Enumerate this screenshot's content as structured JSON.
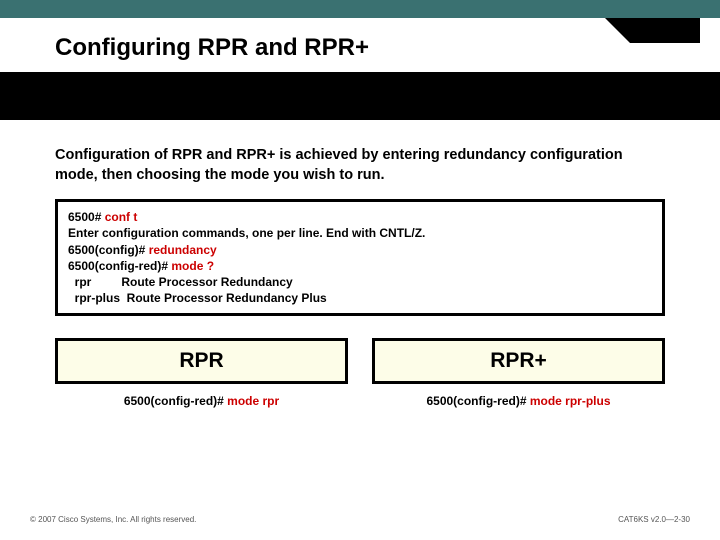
{
  "title": "Configuring RPR and RPR+",
  "intro": "Configuration of RPR and RPR+ is achieved by entering redundancy configuration mode, then choosing the mode you wish to run.",
  "terminal": {
    "l1a": "6500# ",
    "l1b": "conf t",
    "l2": "Enter configuration commands, one per line. End with CNTL/Z.",
    "l3a": "6500(config)# ",
    "l3b": "redundancy",
    "l4a": "6500(config-red)# ",
    "l4b": "mode ?",
    "l5": "  rpr         Route Processor Redundancy",
    "l6": "  rpr-plus  Route Processor Redundancy Plus"
  },
  "columns": {
    "left": {
      "header": "RPR",
      "cmd_prefix": "6500(config-red)# ",
      "cmd_red": "mode rpr"
    },
    "right": {
      "header": "RPR+",
      "cmd_prefix": "6500(config-red)# ",
      "cmd_red": "mode rpr-plus"
    }
  },
  "footer": {
    "left": "© 2007 Cisco Systems, Inc. All rights reserved.",
    "right": "CAT6KS v2.0—2-30"
  },
  "colors": {
    "top_stripe": "#3a7171",
    "band": "#000000",
    "box_bg": "#fdfde8",
    "red": "#cc0000"
  }
}
